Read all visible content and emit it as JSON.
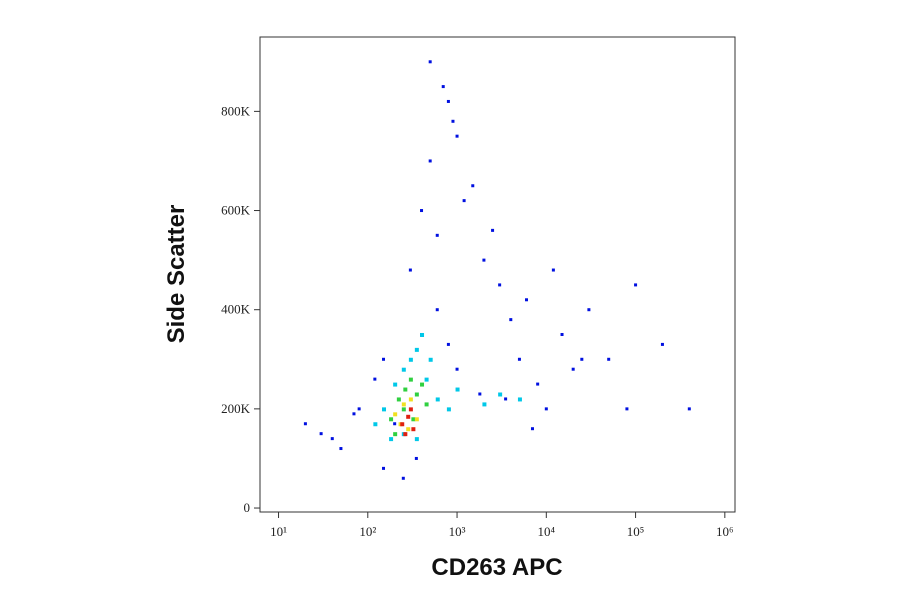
{
  "chart_data": {
    "type": "scatter",
    "xlabel": "CD263 APC",
    "ylabel": "Side Scatter",
    "xscale": "log",
    "xlim": [
      6.2,
      1300000
    ],
    "xticks": [
      {
        "value": 10,
        "label": "10¹"
      },
      {
        "value": 100,
        "label": "10²"
      },
      {
        "value": 1000,
        "label": "10³"
      },
      {
        "value": 10000,
        "label": "10⁴"
      },
      {
        "value": 100000,
        "label": "10⁵"
      },
      {
        "value": 1000000,
        "label": "10⁶"
      }
    ],
    "ylim": [
      -8000,
      950000
    ],
    "yticks": [
      0,
      {
        "value": 200000,
        "label": "200K"
      },
      {
        "value": 400000,
        "label": "400K"
      },
      {
        "value": 600000,
        "label": "600K"
      },
      {
        "value": 800000,
        "label": "800K"
      }
    ],
    "series": [
      {
        "color": "#0010e0",
        "x": [
          30,
          50,
          80,
          120,
          150,
          200,
          300,
          400,
          500,
          600,
          800,
          1000,
          1500,
          2000,
          3000,
          4000,
          5000,
          8000,
          10000,
          15000,
          20000,
          30000,
          50000,
          80000,
          100000,
          200000,
          400000,
          500,
          700,
          900,
          1200,
          2500,
          6000,
          12000,
          25000,
          400,
          600,
          800,
          1000,
          1800,
          3500,
          7000,
          150,
          250,
          350,
          20,
          40,
          70
        ],
        "values": [
          150000,
          120000,
          200000,
          260000,
          300000,
          170000,
          480000,
          600000,
          700000,
          550000,
          820000,
          750000,
          650000,
          500000,
          450000,
          380000,
          300000,
          250000,
          200000,
          350000,
          280000,
          400000,
          300000,
          200000,
          450000,
          330000,
          200000,
          900000,
          850000,
          780000,
          620000,
          560000,
          420000,
          480000,
          300000,
          350000,
          400000,
          330000,
          280000,
          230000,
          220000,
          160000,
          80000,
          60000,
          100000,
          170000,
          140000,
          190000
        ]
      },
      {
        "color": "#00c8e8",
        "x": [
          150,
          200,
          250,
          300,
          350,
          400,
          450,
          500,
          600,
          800,
          1000,
          2000,
          3000,
          5000,
          250,
          180,
          350,
          120
        ],
        "values": [
          200000,
          250000,
          280000,
          300000,
          320000,
          350000,
          260000,
          300000,
          220000,
          200000,
          240000,
          210000,
          230000,
          220000,
          150000,
          140000,
          140000,
          170000
        ]
      },
      {
        "color": "#30d040",
        "x": [
          180,
          220,
          260,
          300,
          350,
          400,
          250,
          200,
          320,
          450
        ],
        "values": [
          180000,
          220000,
          240000,
          260000,
          230000,
          250000,
          200000,
          150000,
          180000,
          210000
        ]
      },
      {
        "color": "#f0e020",
        "x": [
          200,
          250,
          300,
          350,
          280,
          230
        ],
        "values": [
          190000,
          210000,
          220000,
          180000,
          160000,
          170000
        ]
      },
      {
        "color": "#e02010",
        "x": [
          240,
          280,
          320,
          260,
          300
        ],
        "values": [
          170000,
          185000,
          160000,
          150000,
          200000
        ]
      }
    ]
  }
}
